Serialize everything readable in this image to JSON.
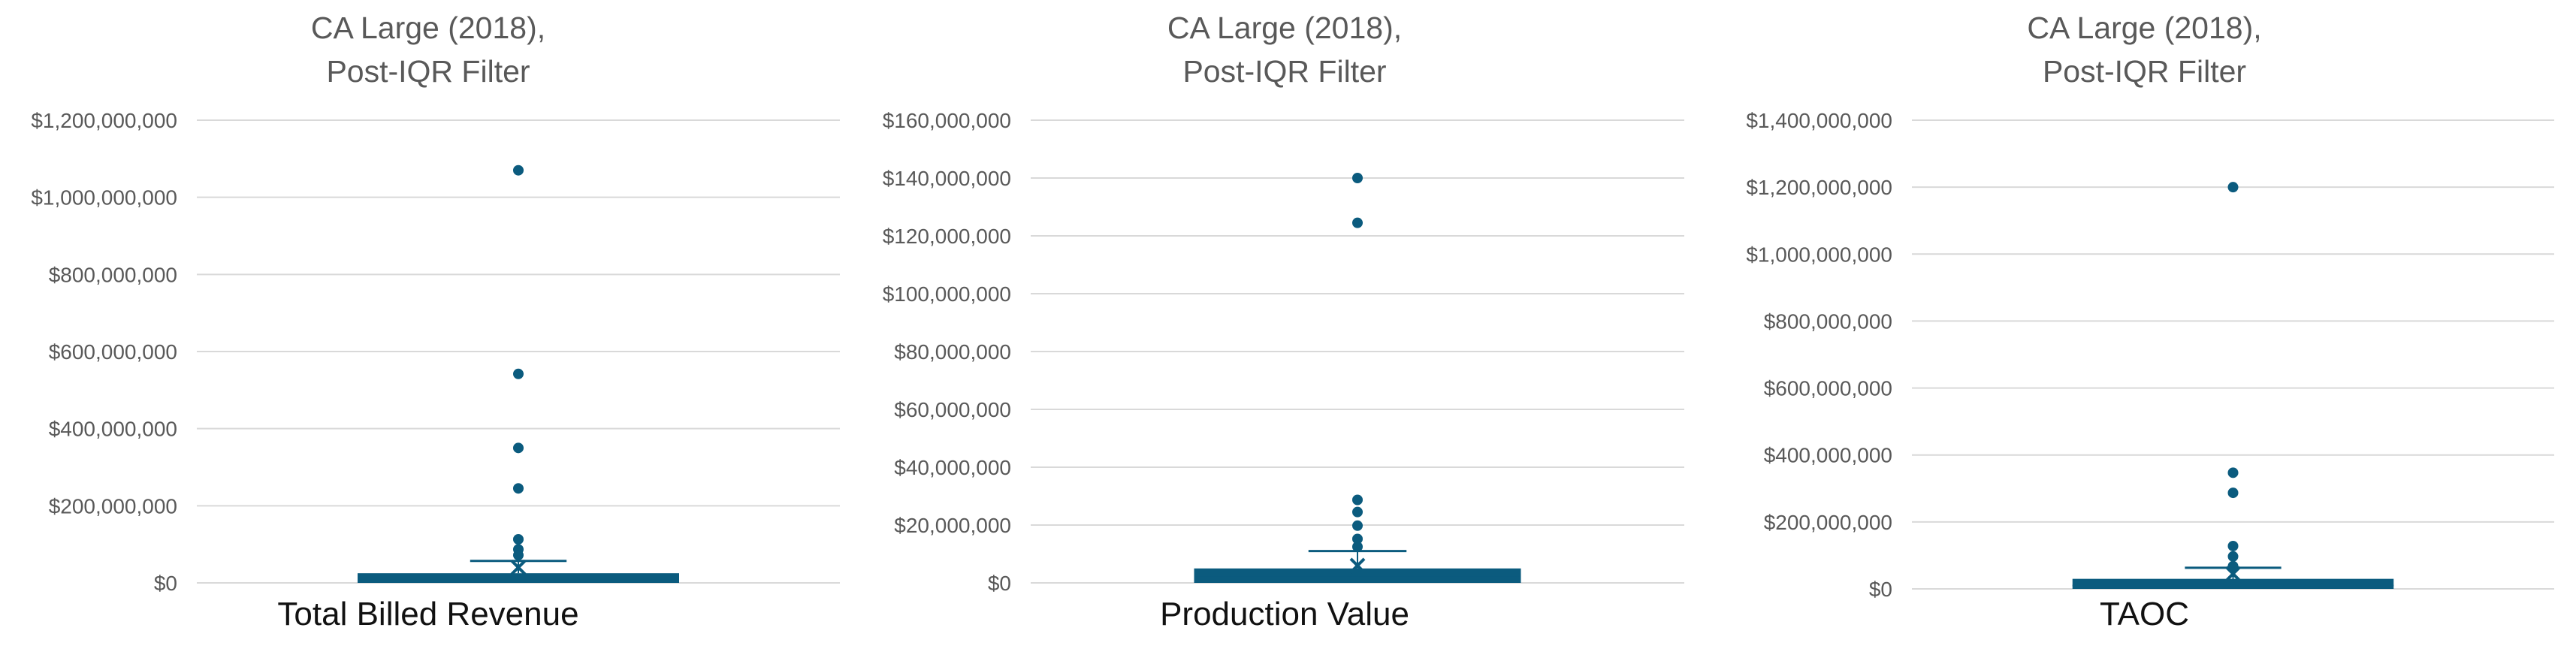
{
  "colors": {
    "box": "#0B5B7E",
    "grid": "#D9D9D9",
    "title": "#595959",
    "tick": "#595959",
    "xlabel": "#111111"
  },
  "chart_data": [
    {
      "type": "box",
      "title_lines": [
        "CA Large (2018),",
        "Post-IQR Filter"
      ],
      "xlabel": "Total Billed Revenue",
      "ylim": [
        0,
        1200000000
      ],
      "ticks": [
        0,
        200000000,
        400000000,
        600000000,
        800000000,
        1000000000,
        1200000000
      ],
      "tick_labels": [
        "$0",
        "$200,000,000",
        "$400,000,000",
        "$600,000,000",
        "$800,000,000",
        "$1,000,000,000",
        "$1,200,000,000"
      ],
      "box": {
        "min": 0,
        "q1": 0,
        "median": 10000000,
        "q3": 25000000,
        "max": 57000000,
        "mean": 40000000
      },
      "outliers": [
        1070000000,
        542000000,
        350000000,
        245000000,
        113000000,
        87000000,
        72000000
      ]
    },
    {
      "type": "box",
      "title_lines": [
        "CA Large (2018),",
        "Post-IQR Filter"
      ],
      "xlabel": "Production Value",
      "ylim": [
        0,
        160000000
      ],
      "ticks": [
        0,
        20000000,
        40000000,
        60000000,
        80000000,
        100000000,
        120000000,
        140000000,
        160000000
      ],
      "tick_labels": [
        "$0",
        "$20,000,000",
        "$40,000,000",
        "$60,000,000",
        "$80,000,000",
        "$100,000,000",
        "$120,000,000",
        "$140,000,000",
        "$160,000,000"
      ],
      "box": {
        "min": 0,
        "q1": 0,
        "median": 2000000,
        "q3": 5000000,
        "max": 11000000,
        "mean": 6000000
      },
      "outliers": [
        140000000,
        124500000,
        28700000,
        24500000,
        19800000,
        15200000,
        12500000
      ]
    },
    {
      "type": "box",
      "title_lines": [
        "CA Large (2018),",
        "Post-IQR Filter"
      ],
      "xlabel": "TAOC",
      "ylim": [
        0,
        1400000000
      ],
      "ticks": [
        0,
        200000000,
        400000000,
        600000000,
        800000000,
        1000000000,
        1200000000,
        1400000000
      ],
      "tick_labels": [
        "$0",
        "$200,000,000",
        "$400,000,000",
        "$600,000,000",
        "$800,000,000",
        "$1,000,000,000",
        "$1,200,000,000",
        "$1,400,000,000"
      ],
      "box": {
        "min": 0,
        "q1": 0,
        "median": 10000000,
        "q3": 30000000,
        "max": 63000000,
        "mean": 45000000
      },
      "outliers": [
        1200000000,
        347000000,
        287000000,
        128000000,
        97000000,
        68000000
      ]
    }
  ]
}
